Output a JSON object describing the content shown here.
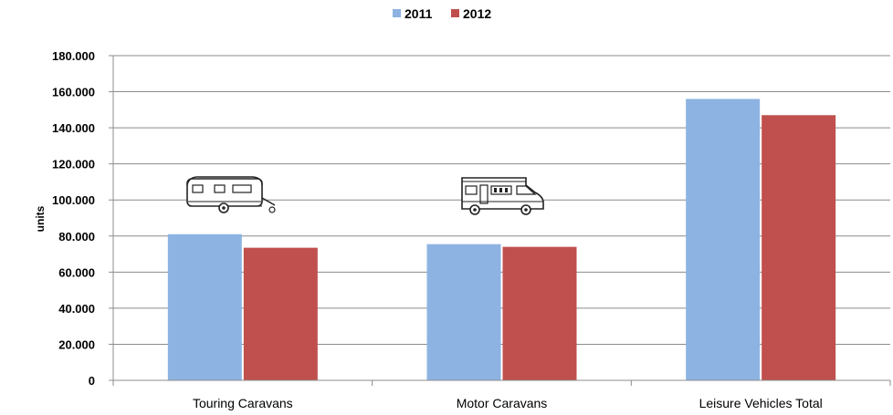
{
  "chart_data": {
    "type": "bar",
    "categories": [
      "Touring Caravans",
      "Motor Caravans",
      "Leisure Vehicles Total"
    ],
    "series": [
      {
        "name": "2011",
        "values": [
          81000,
          75500,
          156000
        ],
        "color": "#8db3e2"
      },
      {
        "name": "2012",
        "values": [
          73500,
          74000,
          147000
        ],
        "color": "#c0504d"
      }
    ],
    "ylabel": "units",
    "ylim": [
      0,
      180000
    ],
    "yticks": [
      0,
      20000,
      40000,
      60000,
      80000,
      100000,
      120000,
      140000,
      160000,
      180000
    ],
    "ytick_labels": [
      "0",
      "20.000",
      "40.000",
      "60.000",
      "80.000",
      "100.000",
      "120.000",
      "140.000",
      "160.000",
      "180.000"
    ],
    "grid": true,
    "legend_position": "top-center",
    "icons": [
      "caravan-trailer-icon",
      "motorhome-icon"
    ]
  }
}
